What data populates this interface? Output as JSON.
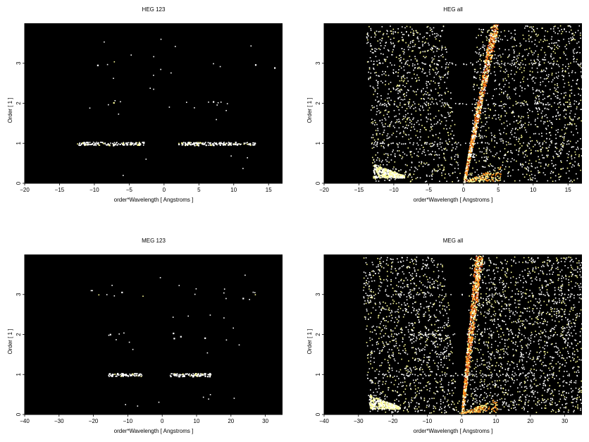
{
  "chart_data": [
    {
      "type": "heatmap",
      "title": "HEG 123",
      "xlabel": "order*Wavelength [ Angstroms ]",
      "ylabel": "Order [ 1 ]",
      "xlim": [
        -20,
        17
      ],
      "ylim": [
        0,
        4
      ],
      "xticks": [
        -20,
        -15,
        -10,
        -5,
        0,
        5,
        10,
        15
      ],
      "yticks": [
        0,
        1,
        2,
        3
      ],
      "background": "#000000",
      "colors": [
        "#ffffff",
        "#ffff99",
        "#ff8c1a",
        "#b03000"
      ],
      "pattern": "orders-only",
      "bands": [
        {
          "order": 1,
          "x_ranges": [
            [
              -12.5,
              -3
            ],
            [
              2,
              13
            ]
          ],
          "density": 1.0
        },
        {
          "order": 2,
          "x_ranges": [
            [
              -11,
              -3
            ],
            [
              2,
              11
            ]
          ],
          "density": 0.25
        },
        {
          "order": 3,
          "x_ranges": [
            [
              -12,
              -3
            ],
            [
              3,
              16
            ]
          ],
          "density": 0.15
        }
      ]
    },
    {
      "type": "heatmap",
      "title": "HEG all",
      "xlabel": "order*Wavelength [ Angstroms ]",
      "ylabel": "Order [ 1 ]",
      "xlim": [
        -20,
        17
      ],
      "ylim": [
        0,
        4
      ],
      "xticks": [
        -20,
        -15,
        -10,
        -5,
        0,
        5,
        10,
        15
      ],
      "yticks": [
        0,
        1,
        2,
        3
      ],
      "background": "#000000",
      "colors": [
        "#ffffff",
        "#ffff99",
        "#ff8c1a",
        "#b03000"
      ],
      "pattern": "diffuse-with-ridge",
      "ridge_top_x": 4.5,
      "gap_top": [
        -2.5,
        1.5
      ],
      "left_edge_x": -13
    },
    {
      "type": "heatmap",
      "title": "MEG 123",
      "xlabel": "order*Wavelength [ Angstroms ]",
      "ylabel": "Order [ 1 ]",
      "xlim": [
        -40,
        35
      ],
      "ylim": [
        0,
        4
      ],
      "xticks": [
        -40,
        -30,
        -20,
        -10,
        0,
        10,
        20,
        30
      ],
      "yticks": [
        0,
        1,
        2,
        3
      ],
      "background": "#000000",
      "colors": [
        "#ffffff",
        "#ffff99",
        "#ff8c1a",
        "#b03000"
      ],
      "pattern": "orders-only",
      "bands": [
        {
          "order": 1,
          "x_ranges": [
            [
              -16,
              -6
            ],
            [
              2,
              14
            ]
          ],
          "density": 1.0
        },
        {
          "order": 2,
          "x_ranges": [
            [
              -22,
              -5
            ],
            [
              3,
              20
            ]
          ],
          "density": 0.25
        },
        {
          "order": 3,
          "x_ranges": [
            [
              -23,
              -2
            ],
            [
              3,
              30
            ]
          ],
          "density": 0.2
        }
      ]
    },
    {
      "type": "heatmap",
      "title": "MEG all",
      "xlabel": "order*Wavelength [ Angstroms ]",
      "ylabel": "Order [ 1 ]",
      "xlim": [
        -40,
        35
      ],
      "ylim": [
        0,
        4
      ],
      "xticks": [
        -40,
        -30,
        -20,
        -10,
        0,
        10,
        20,
        30
      ],
      "yticks": [
        0,
        1,
        2,
        3
      ],
      "background": "#000000",
      "colors": [
        "#ffffff",
        "#ffff99",
        "#ff8c1a",
        "#b03000"
      ],
      "pattern": "diffuse-with-ridge",
      "ridge_top_x": 5,
      "gap_top": [
        -5,
        2
      ],
      "left_edge_x": -27
    }
  ]
}
